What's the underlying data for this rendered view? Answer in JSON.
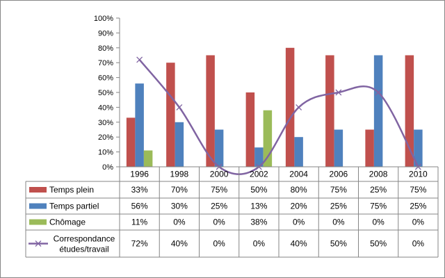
{
  "chart_data": {
    "type": "bar",
    "categories": [
      "1996",
      "1998",
      "2000",
      "2002",
      "2004",
      "2006",
      "2008",
      "2010"
    ],
    "series": [
      {
        "name": "Temps plein",
        "kind": "bar",
        "color": "#C0504D",
        "values": [
          33,
          70,
          75,
          50,
          80,
          75,
          25,
          75
        ],
        "labels": [
          "33%",
          "70%",
          "75%",
          "50%",
          "80%",
          "75%",
          "25%",
          "75%"
        ]
      },
      {
        "name": "Temps partiel",
        "kind": "bar",
        "color": "#4F81BD",
        "values": [
          56,
          30,
          25,
          13,
          20,
          25,
          75,
          25
        ],
        "labels": [
          "56%",
          "30%",
          "25%",
          "13%",
          "20%",
          "25%",
          "75%",
          "25%"
        ]
      },
      {
        "name": "Chômage",
        "kind": "bar",
        "color": "#9BBB59",
        "values": [
          11,
          0,
          0,
          38,
          0,
          0,
          0,
          0
        ],
        "labels": [
          "11%",
          "0%",
          "0%",
          "38%",
          "0%",
          "0%",
          "0%",
          "0%"
        ]
      },
      {
        "name": "Correspondance études/travail",
        "kind": "line",
        "smooth": true,
        "marker": "x",
        "color": "#8064A2",
        "values": [
          72,
          40,
          0,
          0,
          40,
          50,
          50,
          0
        ],
        "labels": [
          "72%",
          "40%",
          "0%",
          "0%",
          "40%",
          "50%",
          "50%",
          "0%"
        ]
      }
    ],
    "ylim": [
      0,
      100
    ],
    "yticks": [
      "0%",
      "10%",
      "20%",
      "30%",
      "40%",
      "50%",
      "60%",
      "70%",
      "80%",
      "90%",
      "100%"
    ],
    "grid": false,
    "legend": "data-table",
    "xlabel": "",
    "ylabel": "",
    "title": ""
  }
}
